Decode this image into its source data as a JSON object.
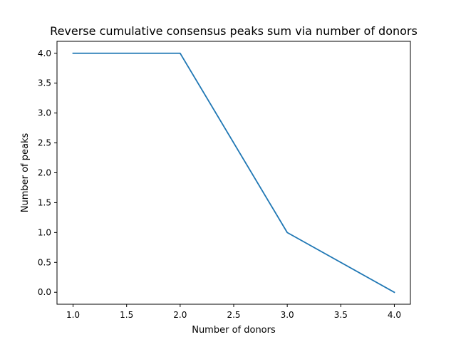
{
  "chart_data": {
    "type": "line",
    "title": "Reverse cumulative consensus peaks sum via number of donors",
    "xlabel": "Number of donors",
    "ylabel": "Number of peaks",
    "xlim": [
      0.85,
      4.15
    ],
    "ylim": [
      -0.2,
      4.2
    ],
    "x_ticks": [
      1.0,
      1.5,
      2.0,
      2.5,
      3.0,
      3.5,
      4.0
    ],
    "y_ticks": [
      0.0,
      0.5,
      1.0,
      1.5,
      2.0,
      2.5,
      3.0,
      3.5,
      4.0
    ],
    "grid": false,
    "series": [
      {
        "color": "#1f77b4",
        "x": [
          1.0,
          2.0,
          3.0,
          4.0
        ],
        "y": [
          4.0,
          4.0,
          1.0,
          0.0
        ]
      }
    ]
  }
}
